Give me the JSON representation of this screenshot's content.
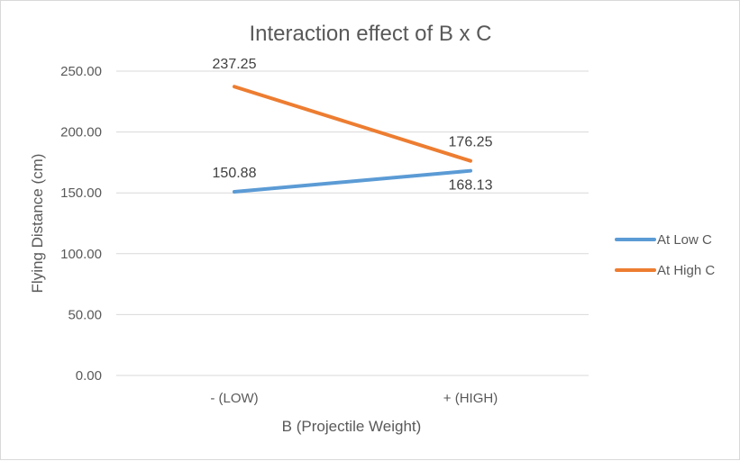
{
  "chart_data": {
    "type": "line",
    "title": "Interaction effect of B x C",
    "xlabel": "B (Projectile Weight)",
    "ylabel": "Flying Distance (cm)",
    "categories": [
      "- (LOW)",
      "+ (HIGH)"
    ],
    "ylim": [
      0,
      250
    ],
    "yticks": [
      "0.00",
      "50.00",
      "100.00",
      "150.00",
      "200.00",
      "250.00"
    ],
    "ytick_values": [
      0,
      50,
      100,
      150,
      200,
      250
    ],
    "grid": true,
    "legend_position": "right",
    "series": [
      {
        "name": "At Low C",
        "values": [
          150.88,
          168.13
        ],
        "labels": [
          "150.88",
          "168.13"
        ],
        "color": "#5b9bd5"
      },
      {
        "name": "At High C",
        "values": [
          237.25,
          176.25
        ],
        "labels": [
          "237.25",
          "176.25"
        ],
        "color": "#ed7d31"
      }
    ]
  }
}
